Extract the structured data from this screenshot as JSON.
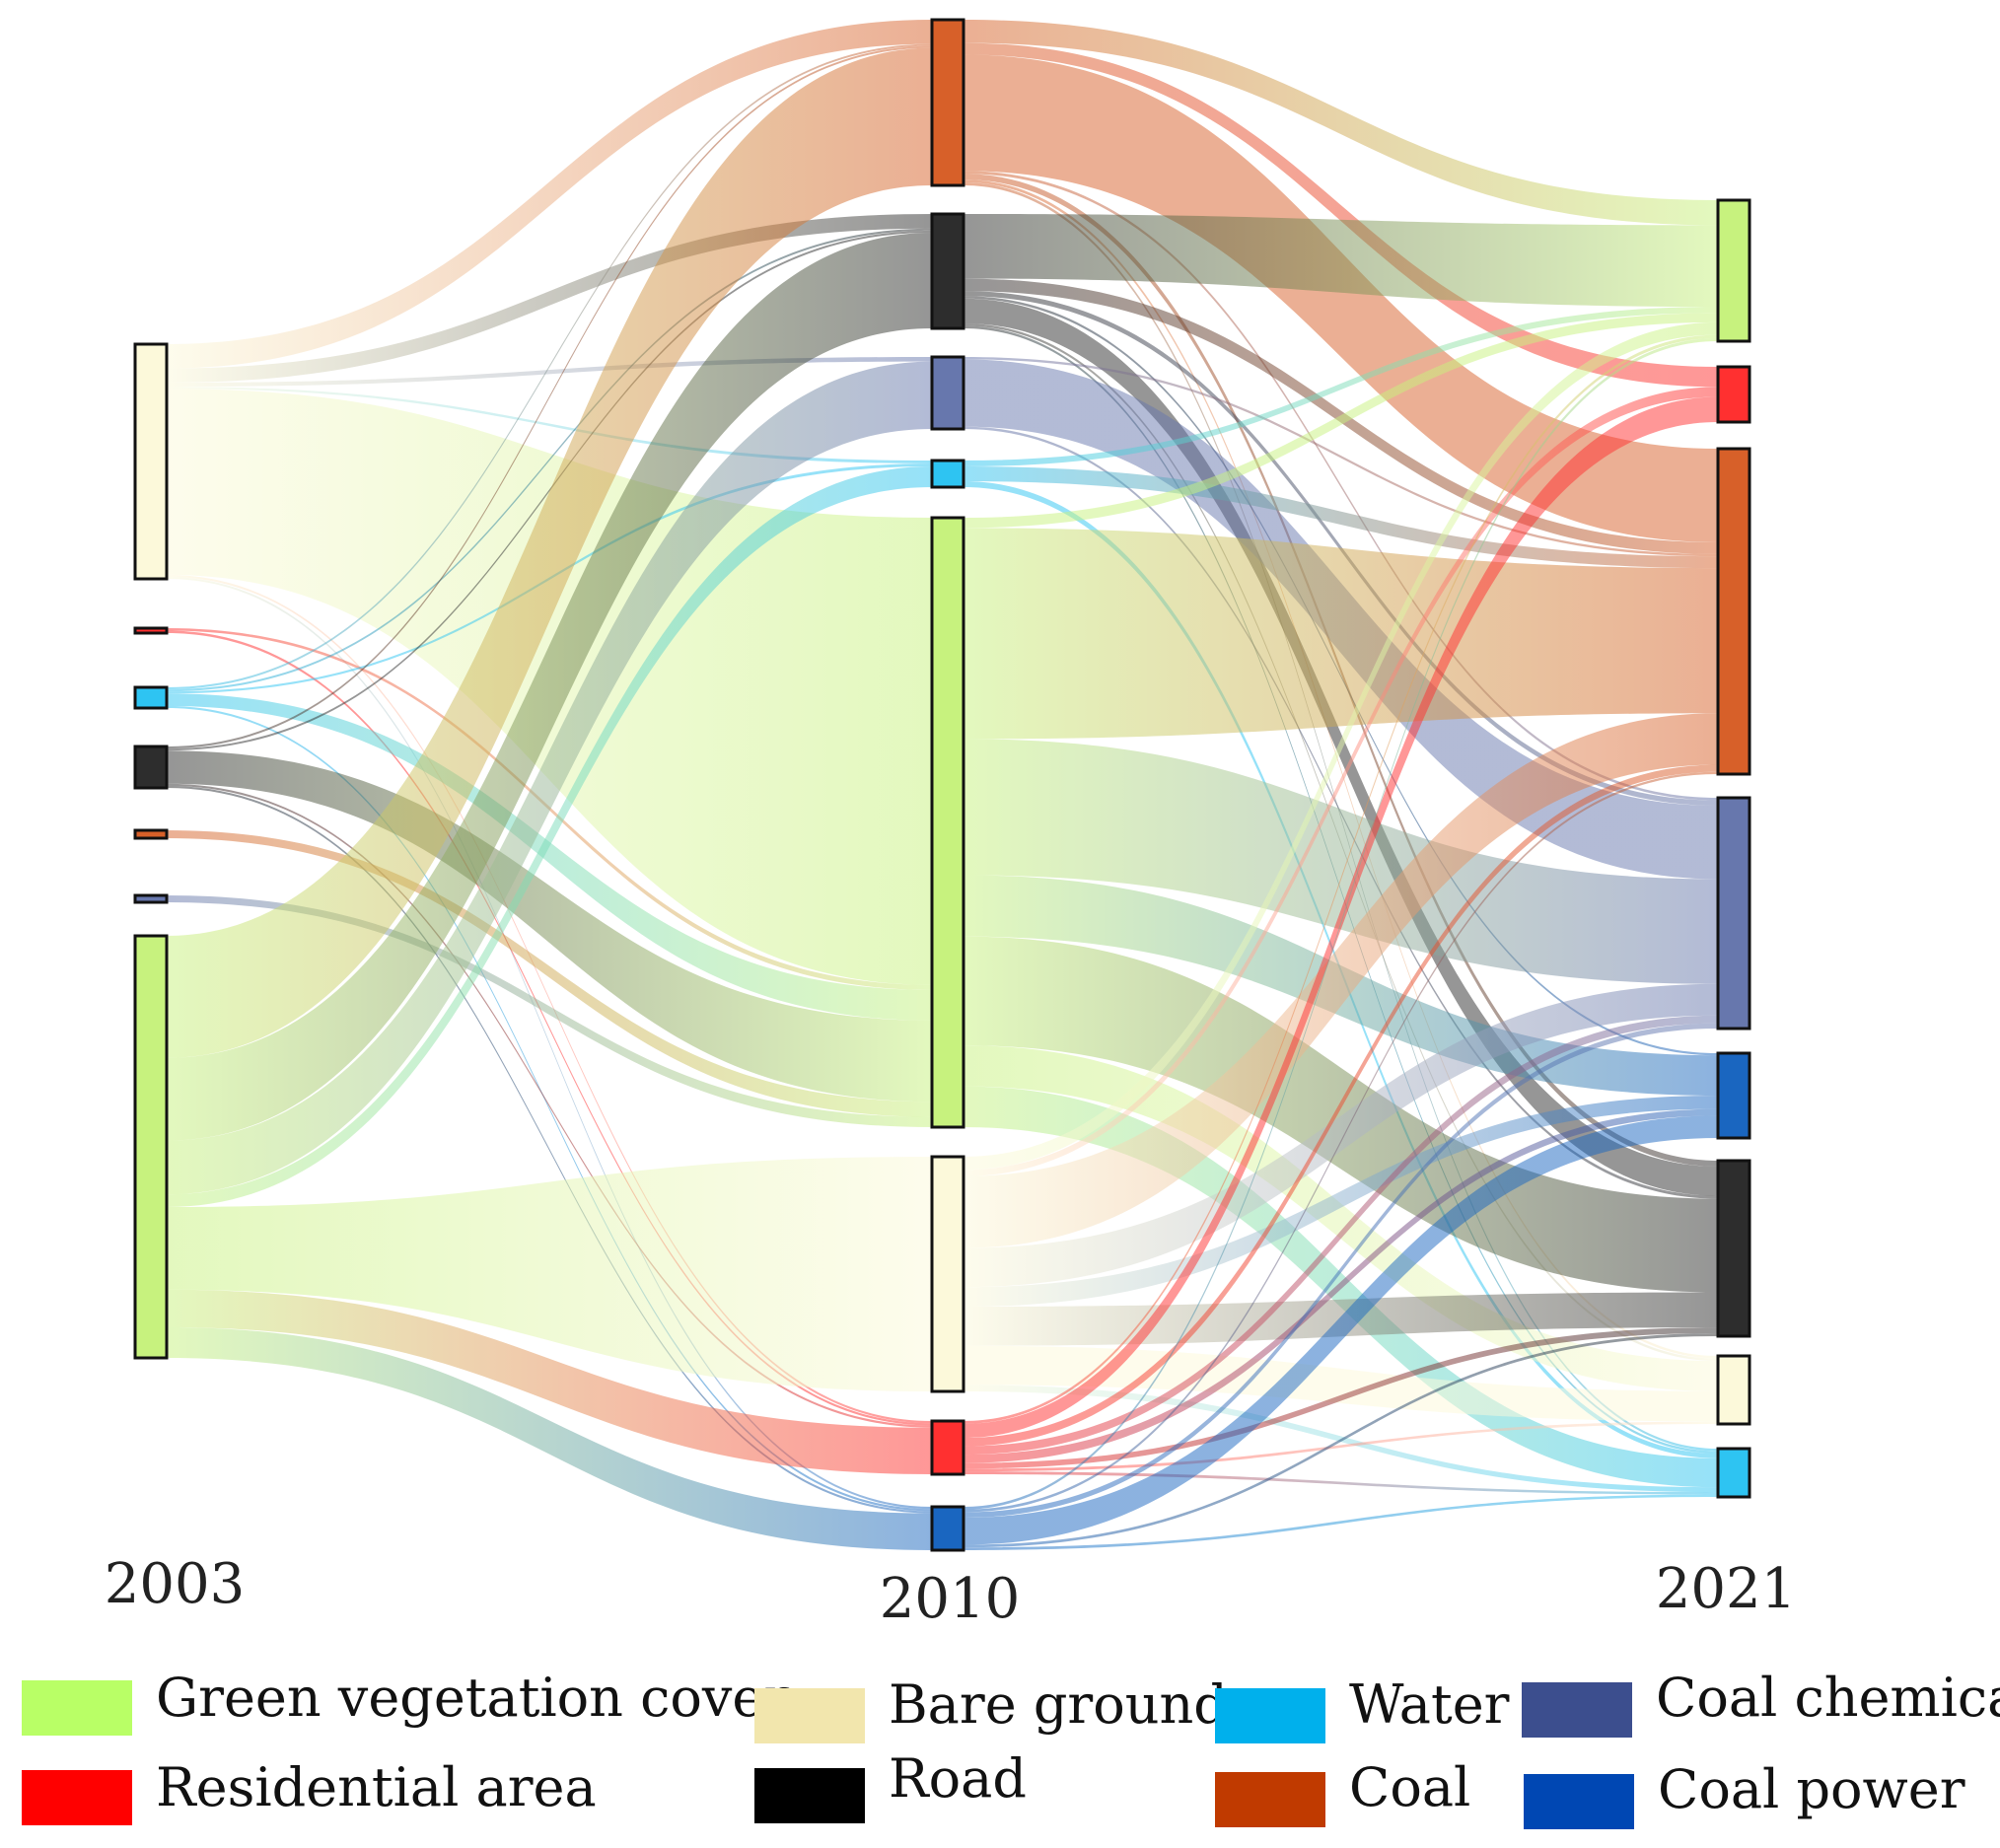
{
  "chart_data": {
    "type": "sankey",
    "title": "",
    "stages": [
      "2003",
      "2010",
      "2021"
    ],
    "categories": {
      "green": {
        "label": "Green vegetation cover",
        "legend_color": "#b9ff66",
        "node_color": "#c7f27e"
      },
      "bare": {
        "label": "Bare ground",
        "legend_color": "#f2e6ad",
        "node_color": "#fcf9da"
      },
      "water": {
        "label": "Water",
        "legend_color": "#00b0ec",
        "node_color": "#2ec4f2"
      },
      "chem": {
        "label": "Coal chemical",
        "legend_color": "#3c4e8e",
        "node_color": "#6777ad"
      },
      "res": {
        "label": "Residential area",
        "legend_color": "#ff0000",
        "node_color": "#ff3030"
      },
      "road": {
        "label": "Road",
        "legend_color": "#000000",
        "node_color": "#2d2d2d"
      },
      "coal": {
        "label": "Coal",
        "legend_color": "#c03a00",
        "node_color": "#d76029"
      },
      "power": {
        "label": "Coal power",
        "legend_color": "#0047b3",
        "node_color": "#1a66c0"
      }
    },
    "legend_order": [
      "green",
      "bare",
      "water",
      "chem",
      "res",
      "road",
      "coal",
      "power"
    ],
    "node_order": {
      "2003": [
        "bare",
        "res",
        "water",
        "road",
        "coal",
        "chem",
        "green"
      ],
      "2010": [
        "coal",
        "road",
        "chem",
        "water",
        "green",
        "bare",
        "res",
        "power"
      ],
      "2021": [
        "green",
        "res",
        "coal",
        "chem",
        "power",
        "road",
        "bare",
        "water"
      ]
    },
    "flows": [
      {
        "from_stage": "2003",
        "from": "bare",
        "to": "coal",
        "value": 12
      },
      {
        "from_stage": "2003",
        "from": "bare",
        "to": "road",
        "value": 7
      },
      {
        "from_stage": "2003",
        "from": "bare",
        "to": "chem",
        "value": 2
      },
      {
        "from_stage": "2003",
        "from": "bare",
        "to": "water",
        "value": 1
      },
      {
        "from_stage": "2003",
        "from": "bare",
        "to": "green",
        "value": 92
      },
      {
        "from_stage": "2003",
        "from": "bare",
        "to": "res",
        "value": 1
      },
      {
        "from_stage": "2003",
        "from": "bare",
        "to": "power",
        "value": 1
      },
      {
        "from_stage": "2003",
        "from": "res",
        "to": "green",
        "value": 1
      },
      {
        "from_stage": "2003",
        "from": "res",
        "to": "res",
        "value": 1
      },
      {
        "from_stage": "2003",
        "from": "water",
        "to": "coal",
        "value": 1
      },
      {
        "from_stage": "2003",
        "from": "water",
        "to": "road",
        "value": 1
      },
      {
        "from_stage": "2003",
        "from": "water",
        "to": "water",
        "value": 1
      },
      {
        "from_stage": "2003",
        "from": "water",
        "to": "green",
        "value": 6
      },
      {
        "from_stage": "2003",
        "from": "water",
        "to": "power",
        "value": 1
      },
      {
        "from_stage": "2003",
        "from": "road",
        "to": "coal",
        "value": 1
      },
      {
        "from_stage": "2003",
        "from": "road",
        "to": "road",
        "value": 1
      },
      {
        "from_stage": "2003",
        "from": "road",
        "to": "green",
        "value": 16
      },
      {
        "from_stage": "2003",
        "from": "road",
        "to": "res",
        "value": 1
      },
      {
        "from_stage": "2003",
        "from": "road",
        "to": "power",
        "value": 1
      },
      {
        "from_stage": "2003",
        "from": "coal",
        "to": "green",
        "value": 3
      },
      {
        "from_stage": "2003",
        "from": "chem",
        "to": "green",
        "value": 2
      },
      {
        "from_stage": "2003",
        "from": "green",
        "to": "coal",
        "value": 68
      },
      {
        "from_stage": "2003",
        "from": "green",
        "to": "road",
        "value": 46
      },
      {
        "from_stage": "2003",
        "from": "green",
        "to": "chem",
        "value": 30
      },
      {
        "from_stage": "2003",
        "from": "green",
        "to": "water",
        "value": 7
      },
      {
        "from_stage": "2003",
        "from": "green",
        "to": "bare",
        "value": 46
      },
      {
        "from_stage": "2003",
        "from": "green",
        "to": "res",
        "value": 21
      },
      {
        "from_stage": "2003",
        "from": "green",
        "to": "power",
        "value": 17
      },
      {
        "from_stage": "2010",
        "from": "coal",
        "to": "green",
        "value": 8
      },
      {
        "from_stage": "2010",
        "from": "coal",
        "to": "res",
        "value": 4
      },
      {
        "from_stage": "2010",
        "from": "coal",
        "to": "coal",
        "value": 40
      },
      {
        "from_stage": "2010",
        "from": "coal",
        "to": "chem",
        "value": 1
      },
      {
        "from_stage": "2010",
        "from": "coal",
        "to": "road",
        "value": 2
      },
      {
        "from_stage": "2010",
        "from": "coal",
        "to": "bare",
        "value": 1
      },
      {
        "from_stage": "2010",
        "from": "coal",
        "to": "water",
        "value": 1
      },
      {
        "from_stage": "2010",
        "from": "road",
        "to": "green",
        "value": 26
      },
      {
        "from_stage": "2010",
        "from": "road",
        "to": "coal",
        "value": 5
      },
      {
        "from_stage": "2010",
        "from": "road",
        "to": "chem",
        "value": 2
      },
      {
        "from_stage": "2010",
        "from": "road",
        "to": "power",
        "value": 1
      },
      {
        "from_stage": "2010",
        "from": "road",
        "to": "road",
        "value": 10
      },
      {
        "from_stage": "2010",
        "from": "road",
        "to": "bare",
        "value": 1
      },
      {
        "from_stage": "2010",
        "from": "road",
        "to": "water",
        "value": 1
      },
      {
        "from_stage": "2010",
        "from": "chem",
        "to": "chem",
        "value": 28
      },
      {
        "from_stage": "2010",
        "from": "chem",
        "to": "coal",
        "value": 1
      },
      {
        "from_stage": "2010",
        "from": "chem",
        "to": "road",
        "value": 1
      },
      {
        "from_stage": "2010",
        "from": "water",
        "to": "green",
        "value": 2
      },
      {
        "from_stage": "2010",
        "from": "water",
        "to": "coal",
        "value": 5
      },
      {
        "from_stage": "2010",
        "from": "water",
        "to": "water",
        "value": 2
      },
      {
        "from_stage": "2010",
        "from": "green",
        "to": "coal",
        "value": 62
      },
      {
        "from_stage": "2010",
        "from": "green",
        "to": "chem",
        "value": 40
      },
      {
        "from_stage": "2010",
        "from": "green",
        "to": "power",
        "value": 18
      },
      {
        "from_stage": "2010",
        "from": "green",
        "to": "road",
        "value": 32
      },
      {
        "from_stage": "2010",
        "from": "green",
        "to": "bare",
        "value": 12
      },
      {
        "from_stage": "2010",
        "from": "green",
        "to": "water",
        "value": 12
      },
      {
        "from_stage": "2010",
        "from": "green",
        "to": "green",
        "value": 3
      },
      {
        "from_stage": "2010",
        "from": "bare",
        "to": "green",
        "value": 4
      },
      {
        "from_stage": "2010",
        "from": "bare",
        "to": "res",
        "value": 2
      },
      {
        "from_stage": "2010",
        "from": "bare",
        "to": "coal",
        "value": 22
      },
      {
        "from_stage": "2010",
        "from": "bare",
        "to": "chem",
        "value": 12
      },
      {
        "from_stage": "2010",
        "from": "bare",
        "to": "power",
        "value": 6
      },
      {
        "from_stage": "2010",
        "from": "bare",
        "to": "road",
        "value": 12
      },
      {
        "from_stage": "2010",
        "from": "bare",
        "to": "bare",
        "value": 12
      },
      {
        "from_stage": "2010",
        "from": "bare",
        "to": "water",
        "value": 2
      },
      {
        "from_stage": "2010",
        "from": "res",
        "to": "green",
        "value": 1
      },
      {
        "from_stage": "2010",
        "from": "res",
        "to": "res",
        "value": 5
      },
      {
        "from_stage": "2010",
        "from": "res",
        "to": "coal",
        "value": 3
      },
      {
        "from_stage": "2010",
        "from": "res",
        "to": "chem",
        "value": 3
      },
      {
        "from_stage": "2010",
        "from": "res",
        "to": "power",
        "value": 3
      },
      {
        "from_stage": "2010",
        "from": "res",
        "to": "road",
        "value": 2
      },
      {
        "from_stage": "2010",
        "from": "res",
        "to": "bare",
        "value": 1
      },
      {
        "from_stage": "2010",
        "from": "res",
        "to": "water",
        "value": 1
      },
      {
        "from_stage": "2010",
        "from": "power",
        "to": "green",
        "value": 1
      },
      {
        "from_stage": "2010",
        "from": "power",
        "to": "coal",
        "value": 1
      },
      {
        "from_stage": "2010",
        "from": "power",
        "to": "chem",
        "value": 2
      },
      {
        "from_stage": "2010",
        "from": "power",
        "to": "power",
        "value": 10
      },
      {
        "from_stage": "2010",
        "from": "power",
        "to": "road",
        "value": 1
      },
      {
        "from_stage": "2010",
        "from": "power",
        "to": "water",
        "value": 1
      }
    ]
  }
}
